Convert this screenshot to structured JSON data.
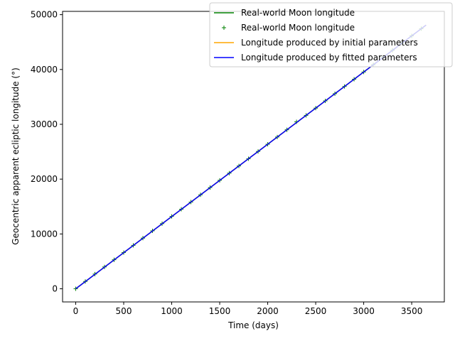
{
  "chart_data": {
    "type": "line",
    "title": "",
    "xlabel": "Time (days)",
    "ylabel": "Geocentric apparent ecliptic longitude (°)",
    "xlim": [
      -137,
      3840
    ],
    "ylim": [
      -2400,
      50600
    ],
    "xticks": [
      0,
      500,
      1000,
      1500,
      2000,
      2500,
      3000,
      3500
    ],
    "yticks": [
      0,
      10000,
      20000,
      30000,
      40000,
      50000
    ],
    "grid": false,
    "legend_position": "top-right",
    "series": [
      {
        "name": "Real-world Moon longitude",
        "kind": "line",
        "color": "#008000",
        "x": [
          0,
          3650
        ],
        "y": [
          0,
          48100
        ]
      },
      {
        "name": "Real-world Moon longitude",
        "kind": "scatter",
        "marker": "plus",
        "color": "#008000",
        "x": [
          0,
          100,
          200,
          300,
          400,
          500,
          600,
          700,
          800,
          900,
          1000,
          1100,
          1200,
          1300,
          1400,
          1500,
          1600,
          1700,
          1800,
          1900,
          2000,
          2100,
          2200,
          2300,
          2400,
          2500,
          2600,
          2700,
          2800,
          2900,
          3000,
          3100,
          3200,
          3300,
          3400,
          3500,
          3600
        ],
        "y": [
          0,
          1330,
          2680,
          3980,
          5290,
          6600,
          7920,
          9240,
          10570,
          11880,
          13200,
          14510,
          15820,
          17140,
          18460,
          19780,
          21090,
          22400,
          23720,
          25050,
          26360,
          27680,
          29000,
          30450,
          31630,
          32950,
          34270,
          35580,
          36900,
          38220,
          39540,
          40860,
          42180,
          43500,
          44820,
          46130,
          47450
        ]
      },
      {
        "name": "Longitude produced by initial parameters",
        "kind": "line",
        "color": "#ffa500",
        "x": [
          0,
          3650
        ],
        "y": [
          0,
          48100
        ]
      },
      {
        "name": "Longitude produced by fitted parameters",
        "kind": "line",
        "color": "#0000ff",
        "x": [
          0,
          3650
        ],
        "y": [
          0,
          48100
        ]
      }
    ]
  }
}
